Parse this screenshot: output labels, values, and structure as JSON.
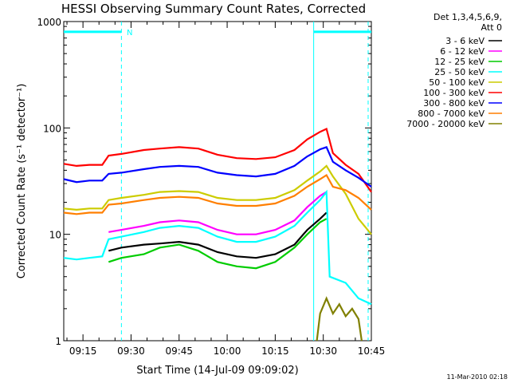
{
  "chart_data": {
    "type": "line",
    "title": "HESSI Observing Summary Count Rates, Corrected",
    "xlabel": "Start Time (14-Jul-09 09:09:02)",
    "ylabel": "Corrected Count Rate (s⁻¹ detector⁻¹)",
    "yscale": "log",
    "ylim": [
      1,
      1000
    ],
    "xlim_minutes": [
      0,
      96
    ],
    "x_unit": "minutes after 09:09:02",
    "yticks": [
      {
        "value": 1,
        "label": "1"
      },
      {
        "value": 10,
        "label": "10"
      },
      {
        "value": 100,
        "label": "100"
      },
      {
        "value": 1000,
        "label": "1000"
      }
    ],
    "xticks": [
      {
        "value": 6,
        "label": "09:15"
      },
      {
        "value": 21,
        "label": "09:30"
      },
      {
        "value": 36,
        "label": "09:45"
      },
      {
        "value": 51,
        "label": "10:00"
      },
      {
        "value": 66,
        "label": "10:15"
      },
      {
        "value": 81,
        "label": "10:30"
      },
      {
        "value": 96,
        "label": "10:45"
      }
    ],
    "legend": {
      "header": [
        "Det 1,3,4,5,6,9,",
        "Att 0"
      ],
      "position": "right"
    },
    "annotations": {
      "night_marker": "N",
      "plot_date": "11-Mar-2010 02:18"
    },
    "markers": [
      {
        "name": "night-1",
        "type": "bar",
        "x_start": 0,
        "x_end": 18,
        "y": 800
      },
      {
        "name": "night-1-end",
        "type": "dashed-line",
        "x": 18
      },
      {
        "name": "attenuator-start",
        "type": "solid-line",
        "x": 78
      },
      {
        "name": "night-2",
        "type": "bar",
        "x_start": 78,
        "x_end": 96,
        "y": 800
      },
      {
        "name": "night-2-end",
        "type": "dashed-line",
        "x": 95
      }
    ],
    "series": [
      {
        "name": "3 - 6 keV",
        "color": "#000000",
        "points": [
          [
            14,
            7
          ],
          [
            18,
            7.5
          ],
          [
            25,
            8
          ],
          [
            30,
            8.2
          ],
          [
            36,
            8.5
          ],
          [
            42,
            8
          ],
          [
            48,
            6.8
          ],
          [
            54,
            6.2
          ],
          [
            60,
            6
          ],
          [
            66,
            6.5
          ],
          [
            72,
            8
          ],
          [
            76,
            11
          ],
          [
            80,
            14
          ],
          [
            82,
            16
          ]
        ]
      },
      {
        "name": "6 - 12 keV",
        "color": "#ff00ff",
        "points": [
          [
            14,
            10.5
          ],
          [
            18,
            11
          ],
          [
            25,
            12
          ],
          [
            30,
            13
          ],
          [
            36,
            13.5
          ],
          [
            42,
            13
          ],
          [
            48,
            11
          ],
          [
            54,
            10
          ],
          [
            60,
            10
          ],
          [
            66,
            11
          ],
          [
            72,
            13.5
          ],
          [
            76,
            18
          ],
          [
            80,
            23
          ],
          [
            82,
            25
          ]
        ]
      },
      {
        "name": "12 - 25 keV",
        "color": "#00cc00",
        "points": [
          [
            14,
            5.5
          ],
          [
            18,
            6
          ],
          [
            25,
            6.5
          ],
          [
            30,
            7.5
          ],
          [
            36,
            8
          ],
          [
            42,
            7
          ],
          [
            48,
            5.5
          ],
          [
            54,
            5
          ],
          [
            60,
            4.8
          ],
          [
            66,
            5.5
          ],
          [
            72,
            7.5
          ],
          [
            76,
            10
          ],
          [
            80,
            13
          ],
          [
            82,
            14
          ]
        ]
      },
      {
        "name": "25 - 50 keV",
        "color": "#00ffff",
        "points": [
          [
            0,
            6
          ],
          [
            4,
            5.8
          ],
          [
            8,
            6
          ],
          [
            12,
            6.2
          ],
          [
            14,
            9
          ],
          [
            18,
            9.5
          ],
          [
            25,
            10.5
          ],
          [
            30,
            11.5
          ],
          [
            36,
            12
          ],
          [
            42,
            11.5
          ],
          [
            48,
            9.5
          ],
          [
            54,
            8.5
          ],
          [
            60,
            8.5
          ],
          [
            66,
            9.5
          ],
          [
            72,
            12
          ],
          [
            76,
            16
          ],
          [
            80,
            21
          ],
          [
            82,
            25
          ],
          [
            83,
            4
          ],
          [
            88,
            3.5
          ],
          [
            92,
            2.5
          ],
          [
            96,
            2.2
          ]
        ]
      },
      {
        "name": "50 - 100 keV",
        "color": "#cccc00",
        "points": [
          [
            0,
            17.5
          ],
          [
            4,
            17
          ],
          [
            8,
            17.5
          ],
          [
            12,
            17.5
          ],
          [
            14,
            21
          ],
          [
            18,
            22
          ],
          [
            25,
            23.5
          ],
          [
            30,
            25
          ],
          [
            36,
            25.5
          ],
          [
            42,
            25
          ],
          [
            48,
            22
          ],
          [
            54,
            21
          ],
          [
            60,
            21
          ],
          [
            66,
            22
          ],
          [
            72,
            26
          ],
          [
            76,
            32
          ],
          [
            80,
            39
          ],
          [
            82,
            44
          ],
          [
            84,
            35
          ],
          [
            88,
            24
          ],
          [
            92,
            14
          ],
          [
            96,
            10
          ]
        ]
      },
      {
        "name": "100 - 300 keV",
        "color": "#ff0000",
        "points": [
          [
            0,
            46
          ],
          [
            4,
            44
          ],
          [
            8,
            45
          ],
          [
            12,
            45
          ],
          [
            14,
            55
          ],
          [
            18,
            57
          ],
          [
            25,
            62
          ],
          [
            30,
            64
          ],
          [
            36,
            66
          ],
          [
            42,
            64
          ],
          [
            48,
            56
          ],
          [
            54,
            52
          ],
          [
            60,
            51
          ],
          [
            66,
            53
          ],
          [
            72,
            62
          ],
          [
            76,
            78
          ],
          [
            80,
            92
          ],
          [
            82,
            98
          ],
          [
            84,
            58
          ],
          [
            88,
            45
          ],
          [
            92,
            37
          ],
          [
            96,
            25
          ]
        ]
      },
      {
        "name": "300 - 800 keV",
        "color": "#0000ff",
        "points": [
          [
            0,
            33
          ],
          [
            4,
            31
          ],
          [
            8,
            32
          ],
          [
            12,
            32
          ],
          [
            14,
            37
          ],
          [
            18,
            38
          ],
          [
            25,
            41
          ],
          [
            30,
            43
          ],
          [
            36,
            44
          ],
          [
            42,
            43
          ],
          [
            48,
            38
          ],
          [
            54,
            36
          ],
          [
            60,
            35
          ],
          [
            66,
            37
          ],
          [
            72,
            44
          ],
          [
            76,
            54
          ],
          [
            80,
            63
          ],
          [
            82,
            66
          ],
          [
            84,
            48
          ],
          [
            88,
            40
          ],
          [
            92,
            34
          ],
          [
            96,
            28
          ]
        ]
      },
      {
        "name": "800 - 7000 keV",
        "color": "#ff7f00",
        "points": [
          [
            0,
            16
          ],
          [
            4,
            15.5
          ],
          [
            8,
            16
          ],
          [
            12,
            16
          ],
          [
            14,
            19
          ],
          [
            18,
            19.5
          ],
          [
            25,
            21
          ],
          [
            30,
            22
          ],
          [
            36,
            22.5
          ],
          [
            42,
            22
          ],
          [
            48,
            19.5
          ],
          [
            54,
            18.5
          ],
          [
            60,
            18.5
          ],
          [
            66,
            19.5
          ],
          [
            72,
            23
          ],
          [
            76,
            28
          ],
          [
            80,
            33
          ],
          [
            82,
            36
          ],
          [
            84,
            28
          ],
          [
            88,
            26
          ],
          [
            92,
            22
          ],
          [
            96,
            17
          ]
        ]
      },
      {
        "name": "7000 - 20000 keV",
        "color": "#808000",
        "points": [
          [
            79,
            1
          ],
          [
            80,
            1.8
          ],
          [
            82,
            2.5
          ],
          [
            84,
            1.8
          ],
          [
            86,
            2.2
          ],
          [
            88,
            1.7
          ],
          [
            90,
            2
          ],
          [
            92,
            1.6
          ],
          [
            93,
            1
          ]
        ]
      }
    ]
  }
}
